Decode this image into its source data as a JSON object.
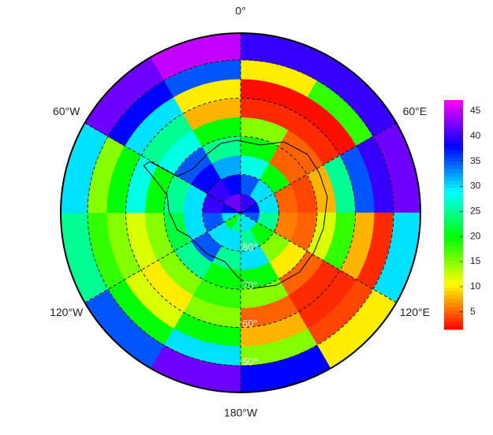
{
  "chart_data": {
    "type": "polar_heatmap",
    "lon_edges": [
      0,
      30,
      60,
      90,
      120,
      150,
      180,
      210,
      240,
      270,
      300,
      330,
      360
    ],
    "lat_edges": [
      -90,
      -85,
      -80,
      -75,
      -70,
      -65,
      -60,
      -55,
      -50,
      -43
    ],
    "values": [
      [
        40,
        35,
        28,
        20,
        15,
        3,
        2,
        10,
        40
      ],
      [
        40,
        30,
        20,
        5,
        5,
        3,
        2,
        18,
        40
      ],
      [
        38,
        30,
        5,
        4,
        8,
        25,
        35,
        40,
        42
      ],
      [
        35,
        25,
        6,
        5,
        12,
        18,
        8,
        3,
        30
      ],
      [
        30,
        20,
        15,
        10,
        5,
        3,
        3,
        4,
        10
      ],
      [
        30,
        25,
        30,
        20,
        15,
        5,
        8,
        15,
        38
      ],
      [
        25,
        30,
        25,
        20,
        18,
        15,
        20,
        30,
        42
      ],
      [
        20,
        30,
        35,
        25,
        15,
        10,
        12,
        20,
        35
      ],
      [
        30,
        35,
        30,
        22,
        15,
        12,
        15,
        18,
        25
      ],
      [
        38,
        40,
        30,
        25,
        20,
        28,
        20,
        15,
        30
      ],
      [
        42,
        40,
        38,
        35,
        28,
        25,
        30,
        38,
        42
      ],
      [
        42,
        38,
        32,
        25,
        20,
        8,
        10,
        35,
        45
      ]
    ],
    "clim": [
      1.5,
      47.2
    ],
    "colorbar_ticks": [
      5,
      10,
      15,
      20,
      25,
      30,
      35,
      40,
      45
    ],
    "lon_ticks": [
      {
        "value": 0,
        "label": "0°"
      },
      {
        "value": 60,
        "label": "60°E"
      },
      {
        "value": 120,
        "label": "120°E"
      },
      {
        "value": 180,
        "label": "180°W"
      },
      {
        "value": -120,
        "label": "120°W"
      },
      {
        "value": -60,
        "label": "60°W"
      }
    ],
    "lat_ticks": [
      {
        "value": -80,
        "label": "80°"
      },
      {
        "value": -70,
        "label": "70°"
      },
      {
        "value": -60,
        "label": "60°"
      },
      {
        "value": -50,
        "label": "50°"
      }
    ],
    "grid": true
  }
}
